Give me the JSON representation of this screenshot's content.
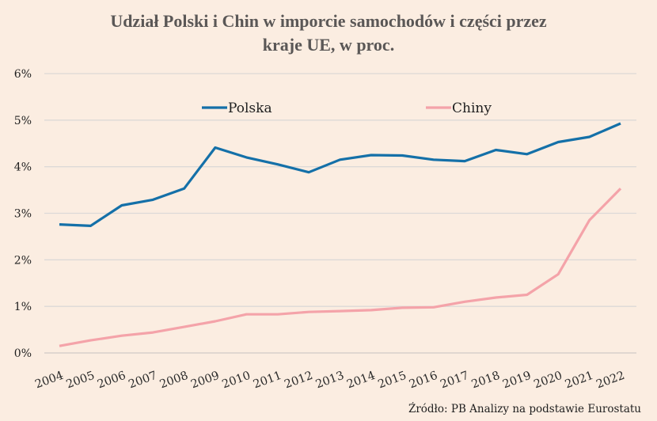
{
  "title": {
    "line1": "Udział Polski i Chin w imporcie samochodów i części przez",
    "line2": "kraje UE, w proc."
  },
  "source": "Źródło: PB Analizy na podstawie Eurostatu",
  "colors": {
    "background": "#fbede1",
    "polska": "#1470a8",
    "chiny": "#f4a3a9",
    "grid": "#dcd9d7",
    "title": "#5a5756"
  },
  "chart_data": {
    "type": "line",
    "title": "Udział Polski i Chin w imporcie samochodów i części przez kraje UE, w proc.",
    "xlabel": "",
    "ylabel": "",
    "x": [
      "2004",
      "2005",
      "2006",
      "2007",
      "2008",
      "2009",
      "2010",
      "2011",
      "2012",
      "2013",
      "2014",
      "2015",
      "2016",
      "2017",
      "2018",
      "2019",
      "2020",
      "2021",
      "2022"
    ],
    "ylim": [
      0,
      6
    ],
    "yticks": [
      0,
      1,
      2,
      3,
      4,
      5,
      6
    ],
    "ytick_labels": [
      "0%",
      "1%",
      "2%",
      "3%",
      "4%",
      "5%",
      "6%"
    ],
    "grid": true,
    "legend_position": "top-center",
    "series": [
      {
        "name": "Polska",
        "color": "#1470a8",
        "values": [
          2.76,
          2.73,
          3.17,
          3.29,
          3.53,
          4.41,
          4.2,
          4.05,
          3.88,
          4.15,
          4.25,
          4.24,
          4.15,
          4.12,
          4.36,
          4.27,
          4.53,
          4.64,
          4.93
        ]
      },
      {
        "name": "Chiny",
        "color": "#f4a3a9",
        "values": [
          0.15,
          0.27,
          0.37,
          0.44,
          0.56,
          0.68,
          0.83,
          0.83,
          0.88,
          0.9,
          0.92,
          0.97,
          0.98,
          1.1,
          1.19,
          1.25,
          1.69,
          2.85,
          3.53
        ]
      }
    ]
  }
}
